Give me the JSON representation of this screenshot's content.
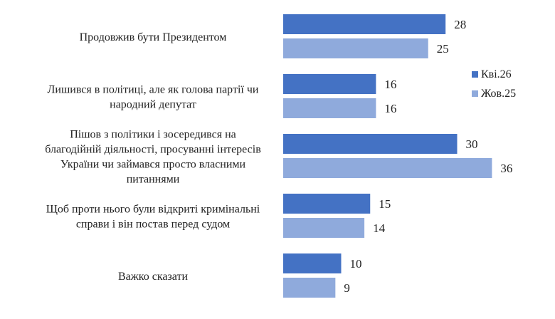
{
  "chart_data": {
    "type": "bar",
    "orientation": "horizontal",
    "categories": [
      "Продовжив бути Президентом",
      "Лишився в політиці, але як голова партії чи народний депутат",
      "Пішов з політики і зосередився на благодійній діяльності, просуванні інтересів України чи займався просто власними питаннями",
      "Щоб проти нього були відкриті кримінальні справи і він постав перед судом",
      "Важко сказати"
    ],
    "category_lines": [
      [
        "Продовжив бути Президентом"
      ],
      [
        "Лишився в політиці, але як голова партії чи",
        "народний депутат"
      ],
      [
        "Пішов з політики і зосередився на",
        "благодійній діяльності, просуванні інтересів",
        "України чи займався просто власними",
        "питаннями"
      ],
      [
        "Щоб проти нього були відкриті кримінальні",
        "справи і він постав перед судом"
      ],
      [
        "Важко сказати"
      ]
    ],
    "series": [
      {
        "name": "Кві.26",
        "color": "#4472C4",
        "values": [
          28,
          16,
          30,
          15,
          10
        ]
      },
      {
        "name": "Жов.25",
        "color": "#8FAADC",
        "values": [
          25,
          16,
          36,
          14,
          9
        ]
      }
    ],
    "xlim": [
      0,
      40
    ],
    "grid": false,
    "legend_position": "right"
  }
}
